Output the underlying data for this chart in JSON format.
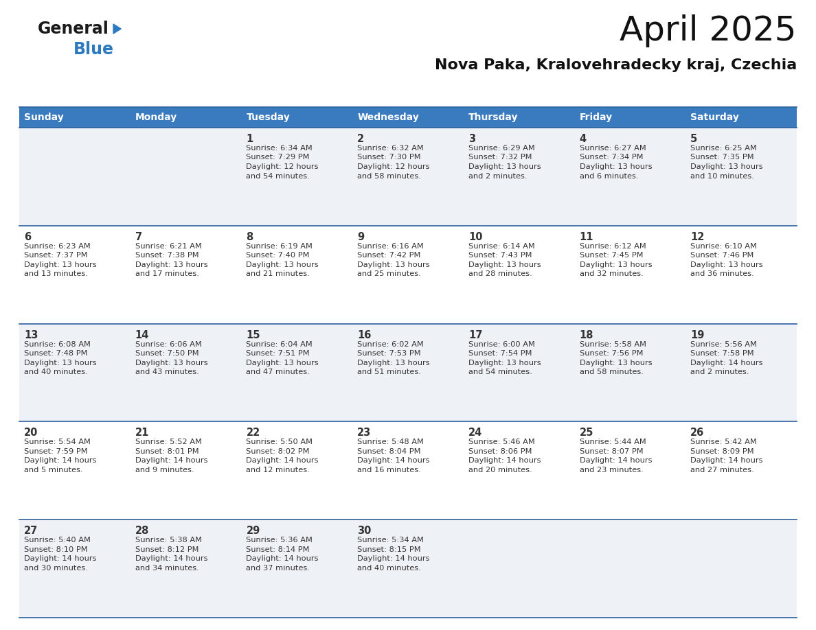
{
  "title": "April 2025",
  "subtitle": "Nova Paka, Kralovehradecky kraj, Czechia",
  "header_bg_color": "#3a7abf",
  "header_text_color": "#ffffff",
  "cell_bg_even": "#eef2f7",
  "cell_bg_odd": "#ffffff",
  "row_line_color": "#2c5f9e",
  "text_color": "#333333",
  "days_of_week": [
    "Sunday",
    "Monday",
    "Tuesday",
    "Wednesday",
    "Thursday",
    "Friday",
    "Saturday"
  ],
  "calendar": [
    [
      {
        "day": "",
        "sunrise": "",
        "sunset": "",
        "daylight": ""
      },
      {
        "day": "",
        "sunrise": "",
        "sunset": "",
        "daylight": ""
      },
      {
        "day": "1",
        "sunrise": "Sunrise: 6:34 AM",
        "sunset": "Sunset: 7:29 PM",
        "daylight": "Daylight: 12 hours\nand 54 minutes."
      },
      {
        "day": "2",
        "sunrise": "Sunrise: 6:32 AM",
        "sunset": "Sunset: 7:30 PM",
        "daylight": "Daylight: 12 hours\nand 58 minutes."
      },
      {
        "day": "3",
        "sunrise": "Sunrise: 6:29 AM",
        "sunset": "Sunset: 7:32 PM",
        "daylight": "Daylight: 13 hours\nand 2 minutes."
      },
      {
        "day": "4",
        "sunrise": "Sunrise: 6:27 AM",
        "sunset": "Sunset: 7:34 PM",
        "daylight": "Daylight: 13 hours\nand 6 minutes."
      },
      {
        "day": "5",
        "sunrise": "Sunrise: 6:25 AM",
        "sunset": "Sunset: 7:35 PM",
        "daylight": "Daylight: 13 hours\nand 10 minutes."
      }
    ],
    [
      {
        "day": "6",
        "sunrise": "Sunrise: 6:23 AM",
        "sunset": "Sunset: 7:37 PM",
        "daylight": "Daylight: 13 hours\nand 13 minutes."
      },
      {
        "day": "7",
        "sunrise": "Sunrise: 6:21 AM",
        "sunset": "Sunset: 7:38 PM",
        "daylight": "Daylight: 13 hours\nand 17 minutes."
      },
      {
        "day": "8",
        "sunrise": "Sunrise: 6:19 AM",
        "sunset": "Sunset: 7:40 PM",
        "daylight": "Daylight: 13 hours\nand 21 minutes."
      },
      {
        "day": "9",
        "sunrise": "Sunrise: 6:16 AM",
        "sunset": "Sunset: 7:42 PM",
        "daylight": "Daylight: 13 hours\nand 25 minutes."
      },
      {
        "day": "10",
        "sunrise": "Sunrise: 6:14 AM",
        "sunset": "Sunset: 7:43 PM",
        "daylight": "Daylight: 13 hours\nand 28 minutes."
      },
      {
        "day": "11",
        "sunrise": "Sunrise: 6:12 AM",
        "sunset": "Sunset: 7:45 PM",
        "daylight": "Daylight: 13 hours\nand 32 minutes."
      },
      {
        "day": "12",
        "sunrise": "Sunrise: 6:10 AM",
        "sunset": "Sunset: 7:46 PM",
        "daylight": "Daylight: 13 hours\nand 36 minutes."
      }
    ],
    [
      {
        "day": "13",
        "sunrise": "Sunrise: 6:08 AM",
        "sunset": "Sunset: 7:48 PM",
        "daylight": "Daylight: 13 hours\nand 40 minutes."
      },
      {
        "day": "14",
        "sunrise": "Sunrise: 6:06 AM",
        "sunset": "Sunset: 7:50 PM",
        "daylight": "Daylight: 13 hours\nand 43 minutes."
      },
      {
        "day": "15",
        "sunrise": "Sunrise: 6:04 AM",
        "sunset": "Sunset: 7:51 PM",
        "daylight": "Daylight: 13 hours\nand 47 minutes."
      },
      {
        "day": "16",
        "sunrise": "Sunrise: 6:02 AM",
        "sunset": "Sunset: 7:53 PM",
        "daylight": "Daylight: 13 hours\nand 51 minutes."
      },
      {
        "day": "17",
        "sunrise": "Sunrise: 6:00 AM",
        "sunset": "Sunset: 7:54 PM",
        "daylight": "Daylight: 13 hours\nand 54 minutes."
      },
      {
        "day": "18",
        "sunrise": "Sunrise: 5:58 AM",
        "sunset": "Sunset: 7:56 PM",
        "daylight": "Daylight: 13 hours\nand 58 minutes."
      },
      {
        "day": "19",
        "sunrise": "Sunrise: 5:56 AM",
        "sunset": "Sunset: 7:58 PM",
        "daylight": "Daylight: 14 hours\nand 2 minutes."
      }
    ],
    [
      {
        "day": "20",
        "sunrise": "Sunrise: 5:54 AM",
        "sunset": "Sunset: 7:59 PM",
        "daylight": "Daylight: 14 hours\nand 5 minutes."
      },
      {
        "day": "21",
        "sunrise": "Sunrise: 5:52 AM",
        "sunset": "Sunset: 8:01 PM",
        "daylight": "Daylight: 14 hours\nand 9 minutes."
      },
      {
        "day": "22",
        "sunrise": "Sunrise: 5:50 AM",
        "sunset": "Sunset: 8:02 PM",
        "daylight": "Daylight: 14 hours\nand 12 minutes."
      },
      {
        "day": "23",
        "sunrise": "Sunrise: 5:48 AM",
        "sunset": "Sunset: 8:04 PM",
        "daylight": "Daylight: 14 hours\nand 16 minutes."
      },
      {
        "day": "24",
        "sunrise": "Sunrise: 5:46 AM",
        "sunset": "Sunset: 8:06 PM",
        "daylight": "Daylight: 14 hours\nand 20 minutes."
      },
      {
        "day": "25",
        "sunrise": "Sunrise: 5:44 AM",
        "sunset": "Sunset: 8:07 PM",
        "daylight": "Daylight: 14 hours\nand 23 minutes."
      },
      {
        "day": "26",
        "sunrise": "Sunrise: 5:42 AM",
        "sunset": "Sunset: 8:09 PM",
        "daylight": "Daylight: 14 hours\nand 27 minutes."
      }
    ],
    [
      {
        "day": "27",
        "sunrise": "Sunrise: 5:40 AM",
        "sunset": "Sunset: 8:10 PM",
        "daylight": "Daylight: 14 hours\nand 30 minutes."
      },
      {
        "day": "28",
        "sunrise": "Sunrise: 5:38 AM",
        "sunset": "Sunset: 8:12 PM",
        "daylight": "Daylight: 14 hours\nand 34 minutes."
      },
      {
        "day": "29",
        "sunrise": "Sunrise: 5:36 AM",
        "sunset": "Sunset: 8:14 PM",
        "daylight": "Daylight: 14 hours\nand 37 minutes."
      },
      {
        "day": "30",
        "sunrise": "Sunrise: 5:34 AM",
        "sunset": "Sunset: 8:15 PM",
        "daylight": "Daylight: 14 hours\nand 40 minutes."
      },
      {
        "day": "",
        "sunrise": "",
        "sunset": "",
        "daylight": ""
      },
      {
        "day": "",
        "sunrise": "",
        "sunset": "",
        "daylight": ""
      },
      {
        "day": "",
        "sunrise": "",
        "sunset": "",
        "daylight": ""
      }
    ]
  ],
  "logo_text_general": "General",
  "logo_text_blue": "Blue",
  "logo_color_general": "#1a1a1a",
  "logo_color_blue": "#2e7abf",
  "logo_triangle_color": "#2e7abf",
  "fig_width": 11.88,
  "fig_height": 9.18,
  "dpi": 100
}
